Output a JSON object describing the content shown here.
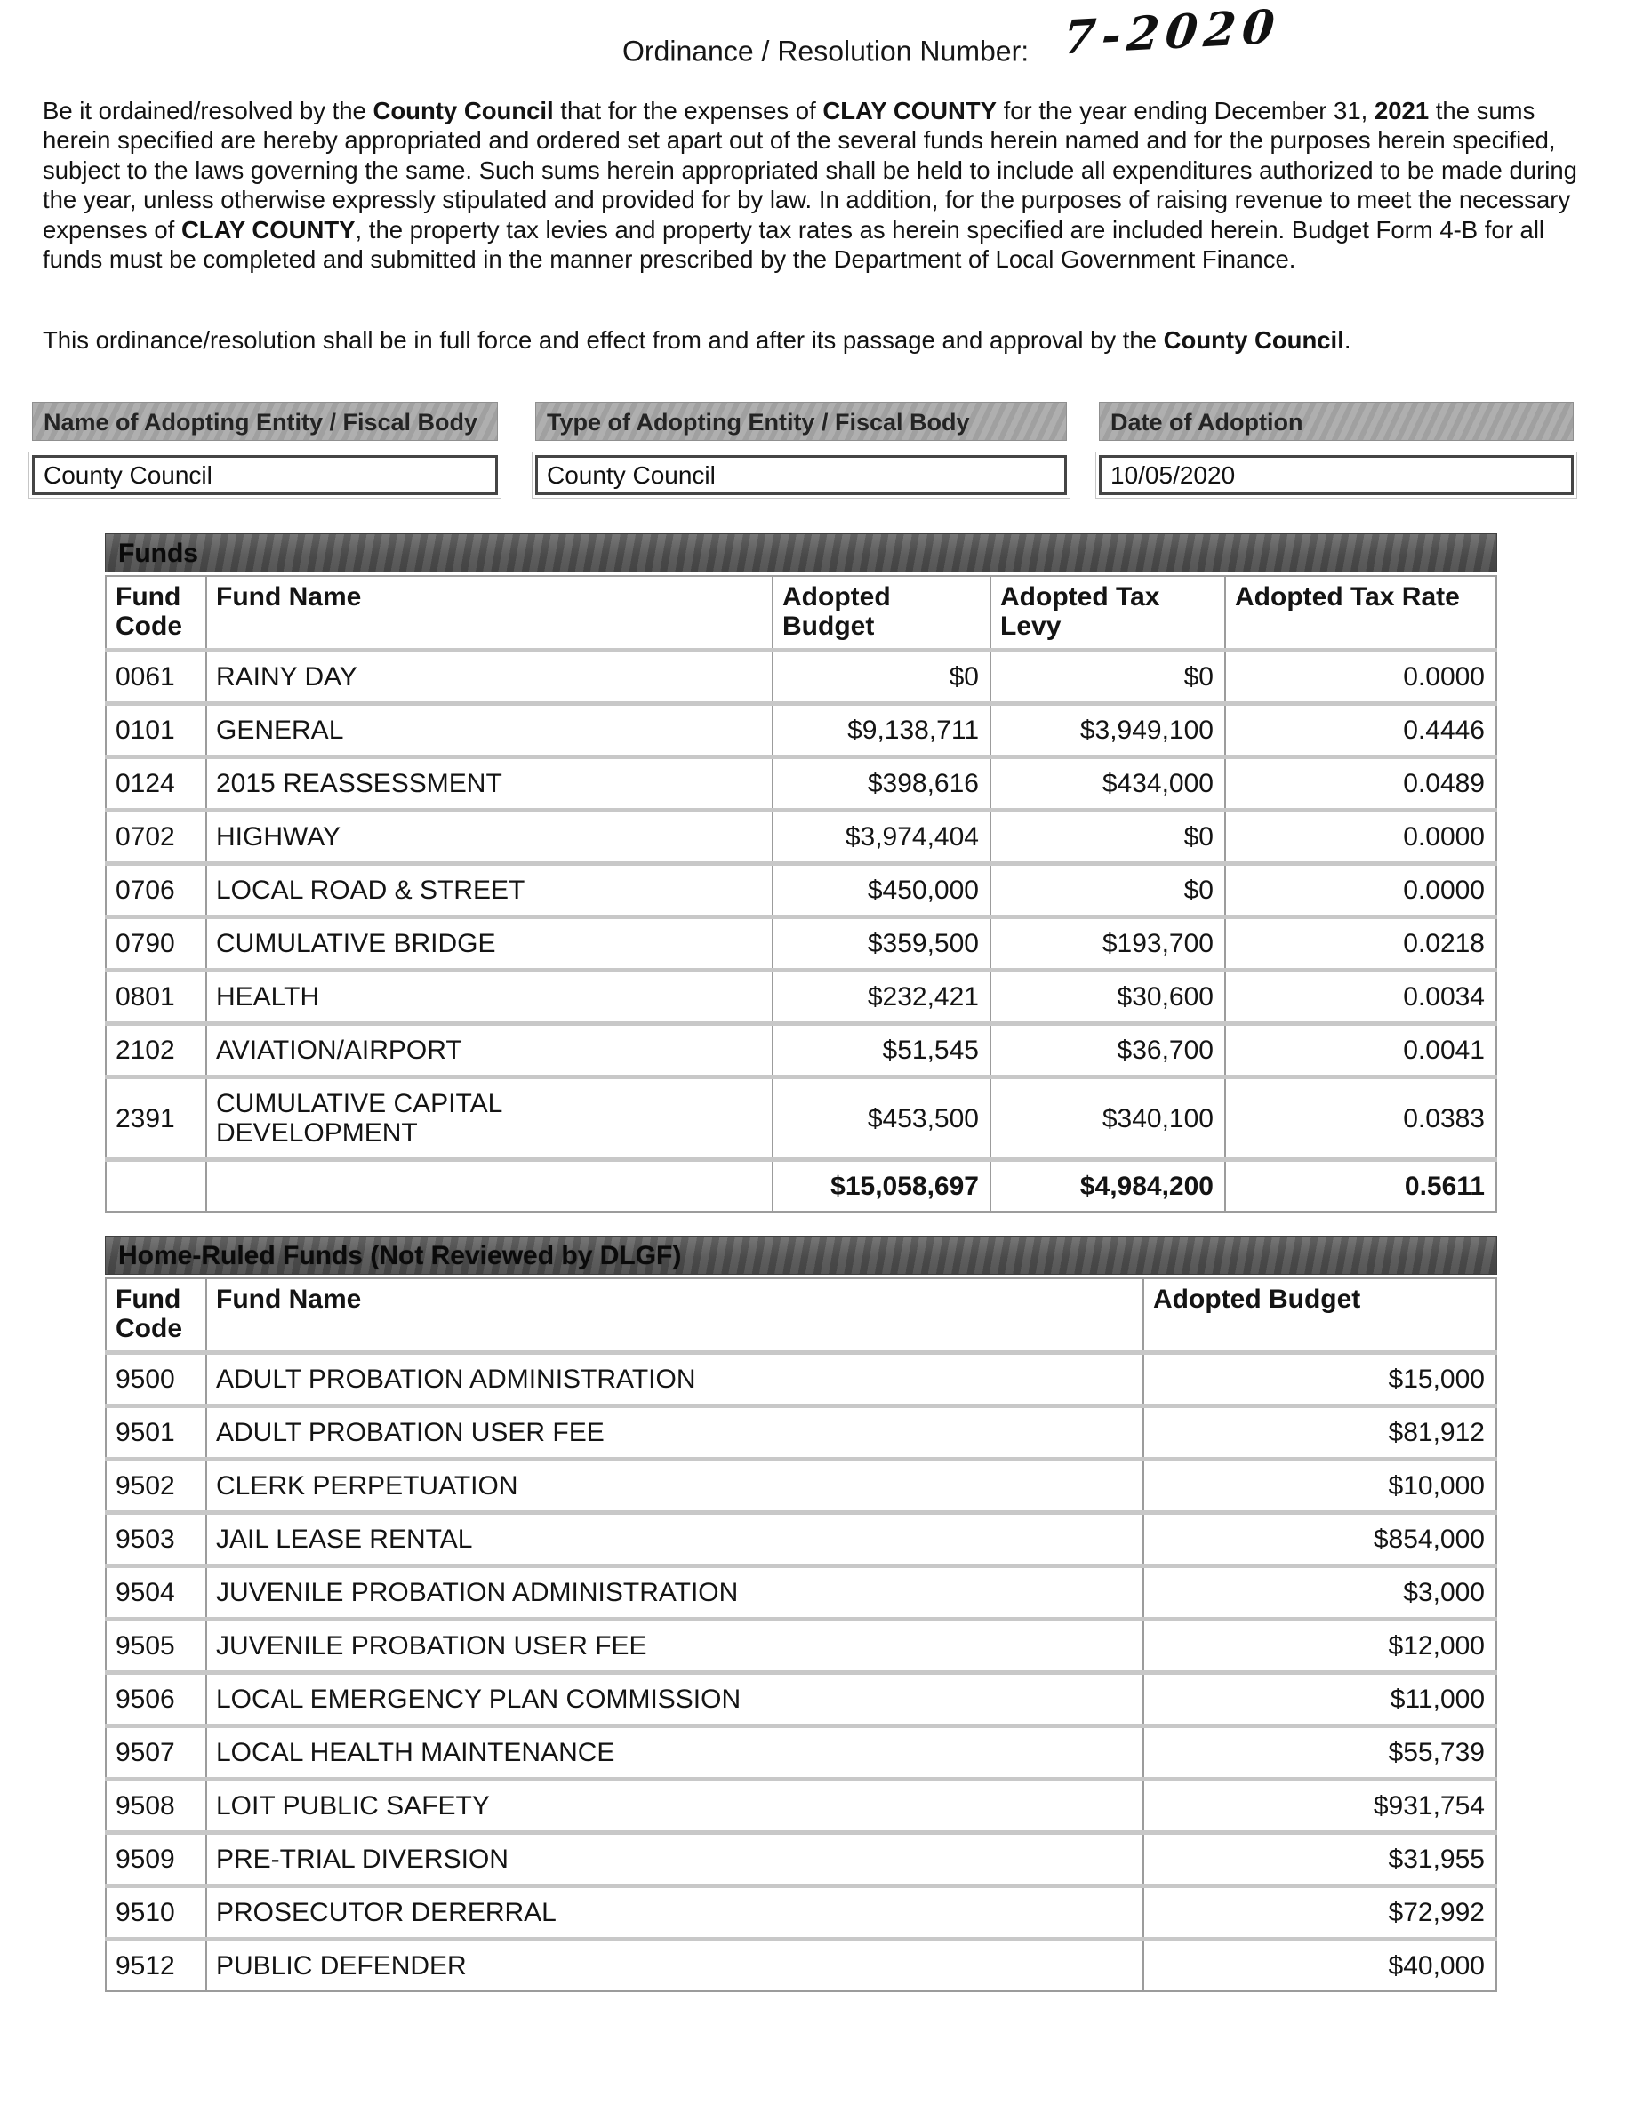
{
  "header": {
    "label": "Ordinance / Resolution Number:",
    "number": "7-2020"
  },
  "paragraphs": [
    {
      "segments": [
        {
          "text": "Be it ordained/resolved by the ",
          "bold": false
        },
        {
          "text": "County Council",
          "bold": true
        },
        {
          "text": " that for the expenses of ",
          "bold": false
        },
        {
          "text": "CLAY COUNTY",
          "bold": true
        },
        {
          "text": " for the year ending December 31, ",
          "bold": false
        },
        {
          "text": "2021",
          "bold": true
        },
        {
          "text": " the sums herein specified are hereby appropriated and ordered set apart out of the several funds herein named and for the purposes herein specified, subject to the laws governing the same. Such sums herein appropriated shall be held to include all expenditures authorized to be made during the year, unless otherwise expressly stipulated and provided for by law. In addition, for the purposes of raising revenue to meet the necessary expenses of ",
          "bold": false
        },
        {
          "text": "CLAY COUNTY",
          "bold": true
        },
        {
          "text": ", the property tax levies and property tax rates as herein specified are included herein. Budget Form 4-B for all funds must be completed and submitted in the manner prescribed by the Department of Local Government Finance.",
          "bold": false
        }
      ]
    },
    {
      "segments": [
        {
          "text": "This ordinance/resolution shall be in full force and effect from and after its passage and approval by the  ",
          "bold": false
        },
        {
          "text": "County Council",
          "bold": true
        },
        {
          "text": ".",
          "bold": false
        }
      ]
    }
  ],
  "adoption_fields": [
    {
      "label": "Name of Adopting Entity / Fiscal Body",
      "value": "County Council"
    },
    {
      "label": "Type of Adopting Entity / Fiscal Body",
      "value": "County Council"
    },
    {
      "label": "Date of Adoption",
      "value": "10/05/2020"
    }
  ],
  "funds_table": {
    "title": "Funds",
    "columns": [
      "Fund Code",
      "Fund Name",
      "Adopted Budget",
      "Adopted Tax Levy",
      "Adopted Tax Rate"
    ],
    "rows": [
      [
        "0061",
        "RAINY DAY",
        "$0",
        "$0",
        "0.0000"
      ],
      [
        "0101",
        "GENERAL",
        "$9,138,711",
        "$3,949,100",
        "0.4446"
      ],
      [
        "0124",
        "2015 REASSESSMENT",
        "$398,616",
        "$434,000",
        "0.0489"
      ],
      [
        "0702",
        "HIGHWAY",
        "$3,974,404",
        "$0",
        "0.0000"
      ],
      [
        "0706",
        "LOCAL ROAD & STREET",
        "$450,000",
        "$0",
        "0.0000"
      ],
      [
        "0790",
        "CUMULATIVE BRIDGE",
        "$359,500",
        "$193,700",
        "0.0218"
      ],
      [
        "0801",
        "HEALTH",
        "$232,421",
        "$30,600",
        "0.0034"
      ],
      [
        "2102",
        "AVIATION/AIRPORT",
        "$51,545",
        "$36,700",
        "0.0041"
      ],
      [
        "2391",
        "CUMULATIVE CAPITAL\nDEVELOPMENT",
        "$453,500",
        "$340,100",
        "0.0383"
      ]
    ],
    "total": [
      "",
      "",
      "$15,058,697",
      "$4,984,200",
      "0.5611"
    ]
  },
  "home_ruled_table": {
    "title": "Home-Ruled Funds (Not Reviewed by DLGF)",
    "columns": [
      "Fund Code",
      "Fund Name",
      "Adopted Budget"
    ],
    "rows": [
      [
        "9500",
        "ADULT PROBATION ADMINISTRATION",
        "$15,000"
      ],
      [
        "9501",
        "ADULT PROBATION USER FEE",
        "$81,912"
      ],
      [
        "9502",
        "CLERK PERPETUATION",
        "$10,000"
      ],
      [
        "9503",
        "JAIL LEASE RENTAL",
        "$854,000"
      ],
      [
        "9504",
        "JUVENILE PROBATION ADMINISTRATION",
        "$3,000"
      ],
      [
        "9505",
        "JUVENILE PROBATION USER FEE",
        "$12,000"
      ],
      [
        "9506",
        "LOCAL EMERGENCY PLAN COMMISSION",
        "$11,000"
      ],
      [
        "9507",
        "LOCAL HEALTH MAINTENANCE",
        "$55,739"
      ],
      [
        "9508",
        "LOIT PUBLIC SAFETY",
        "$931,754"
      ],
      [
        "9509",
        "PRE-TRIAL DIVERSION",
        "$31,955"
      ],
      [
        "9510",
        "PROSECUTOR DERERRAL",
        "$72,992"
      ],
      [
        "9512",
        "PUBLIC DEFENDER",
        "$40,000"
      ]
    ]
  },
  "colors": {
    "section_title_bar_bg": "#565656",
    "field_label_bar_bg": "#a9a9a9",
    "table_border_gray": "#9c9c9c",
    "row_separator_gray": "#c8c8c8",
    "text_black": "#141414"
  }
}
